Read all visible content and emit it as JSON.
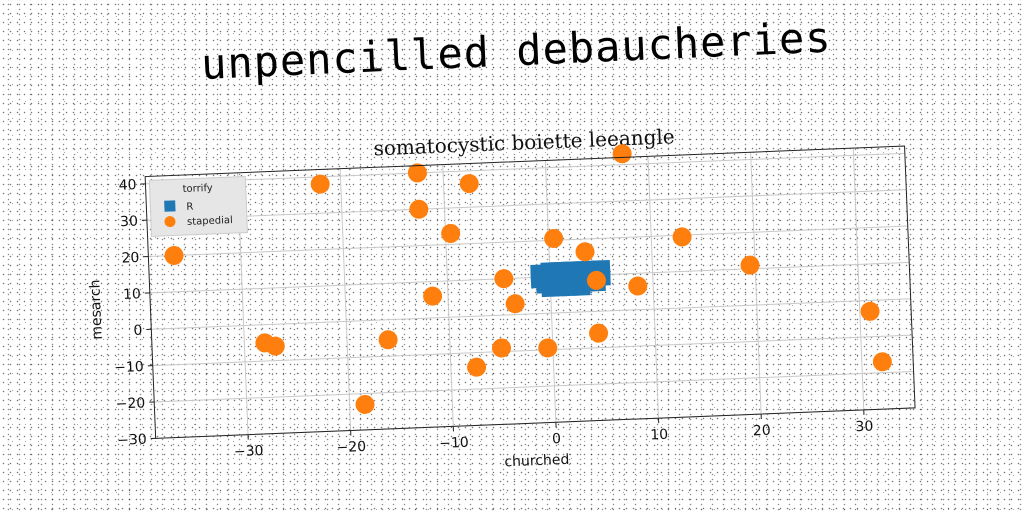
{
  "headline": "unpencilled debaucheries",
  "chart_data": {
    "type": "scatter",
    "title": "somatocystic boiette leeangle",
    "xlabel": "churched",
    "ylabel": "mesarch",
    "xlim": [
      -39,
      35
    ],
    "ylim": [
      -30,
      42
    ],
    "xticks": [
      -30,
      -20,
      -10,
      0,
      10,
      20,
      30
    ],
    "yticks": [
      -30,
      -20,
      -10,
      0,
      10,
      20,
      30,
      40
    ],
    "grid": true,
    "legend": {
      "title": "torrify",
      "position": "top-left",
      "entries": [
        "R",
        "stapedial"
      ]
    },
    "series": [
      {
        "name": "R",
        "marker": "square",
        "color": "#1f77b4",
        "points": [
          [
            -1.0,
            11.0
          ],
          [
            0.0,
            11.5
          ],
          [
            1.0,
            11.5
          ],
          [
            2.0,
            11.5
          ],
          [
            3.0,
            11.5
          ],
          [
            4.0,
            11.5
          ],
          [
            5.0,
            11.5
          ],
          [
            -1.0,
            9.5
          ],
          [
            0.0,
            9.5
          ],
          [
            1.0,
            9.5
          ],
          [
            2.0,
            9.5
          ],
          [
            3.0,
            9.5
          ],
          [
            4.0,
            9.5
          ],
          [
            5.0,
            9.5
          ],
          [
            -0.5,
            8.0
          ],
          [
            0.5,
            8.0
          ],
          [
            1.5,
            8.0
          ],
          [
            2.5,
            8.0
          ],
          [
            3.5,
            8.0
          ],
          [
            4.5,
            8.0
          ],
          [
            0.0,
            7.0
          ],
          [
            1.0,
            7.0
          ],
          [
            2.0,
            7.0
          ],
          [
            3.0,
            7.0
          ]
        ]
      },
      {
        "name": "stapedial",
        "marker": "circle",
        "color": "#ff7f0e",
        "points": [
          [
            -36.5,
            20
          ],
          [
            -22.0,
            38
          ],
          [
            -12.5,
            40
          ],
          [
            -7.5,
            36.5
          ],
          [
            7.5,
            43
          ],
          [
            -12.5,
            30
          ],
          [
            -9.5,
            23
          ],
          [
            0.5,
            20.5
          ],
          [
            3.5,
            16.5
          ],
          [
            13.0,
            19.5
          ],
          [
            19.5,
            11
          ],
          [
            -4.5,
            10
          ],
          [
            4.5,
            8.5
          ],
          [
            8.5,
            6.5
          ],
          [
            -11.5,
            6
          ],
          [
            -3.5,
            3
          ],
          [
            -28.0,
            -5
          ],
          [
            -27.0,
            -6
          ],
          [
            -16.0,
            -5.5
          ],
          [
            4.5,
            -6
          ],
          [
            -5.0,
            -9
          ],
          [
            -0.5,
            -9.5
          ],
          [
            -7.5,
            -14
          ],
          [
            -18.5,
            -23
          ],
          [
            31.0,
            -3
          ],
          [
            32.0,
            -17
          ]
        ]
      }
    ]
  }
}
